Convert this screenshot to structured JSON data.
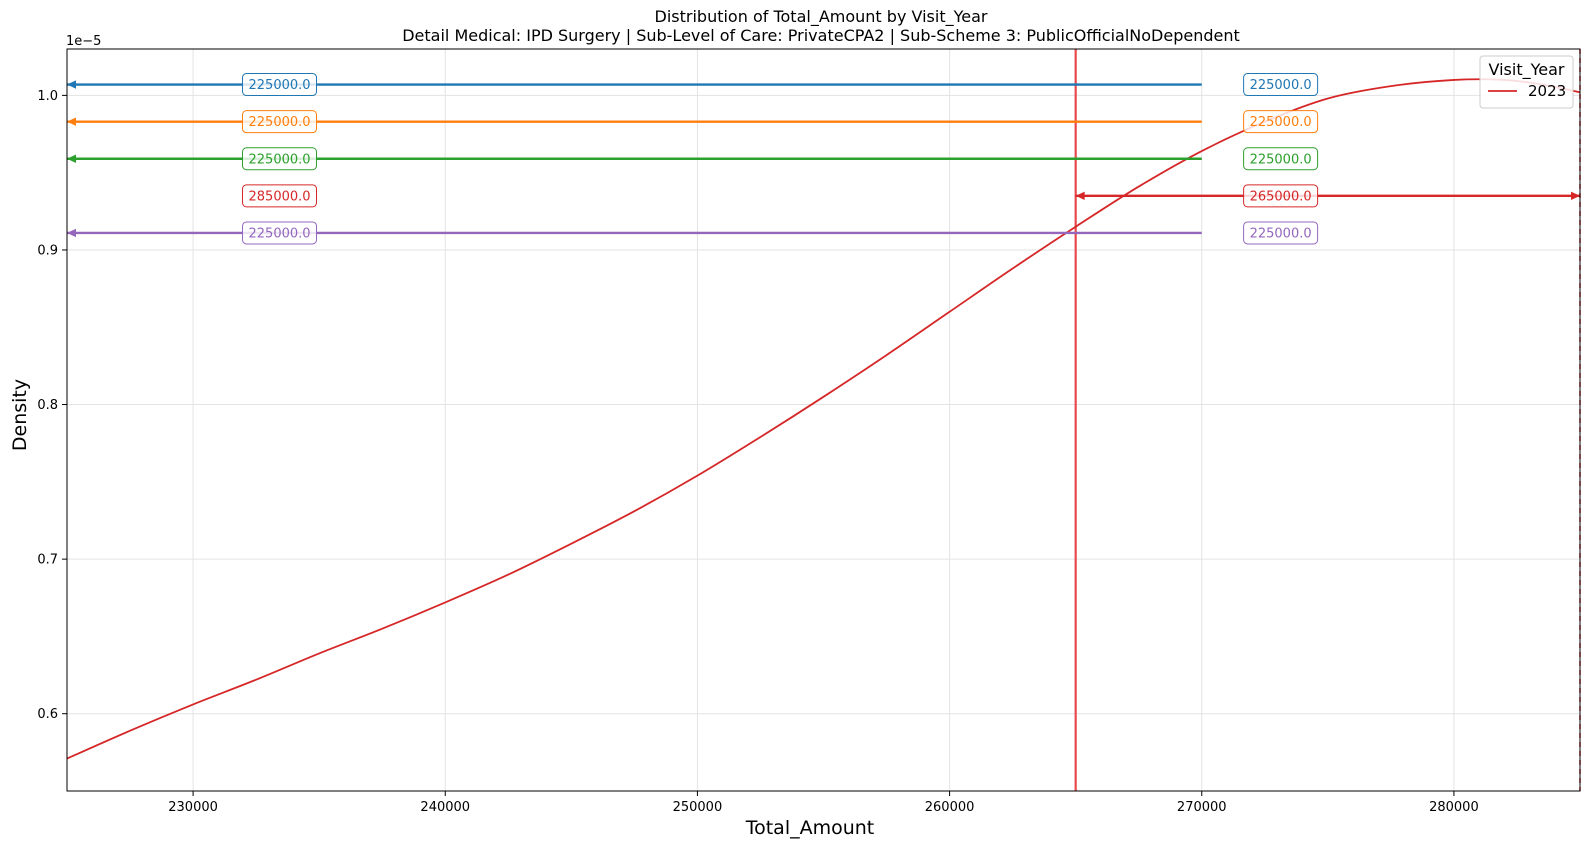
{
  "chart_data": {
    "type": "line",
    "title": "Distribution of Total_Amount by Visit_Year",
    "subtitle": "Detail Medical: IPD Surgery | Sub-Level of Care: PrivateCPA2 | Sub-Scheme 3: PublicOfficialNoDependent",
    "xlabel": "Total_Amount",
    "ylabel": "Density",
    "y_offset_label": "1e−5",
    "xlim": [
      225000,
      285000
    ],
    "ylim": [
      0.55,
      1.03
    ],
    "y_scale_note": "values in units of 1e-5",
    "x_ticks": [
      230000,
      240000,
      250000,
      260000,
      270000,
      280000
    ],
    "x_tick_labels": [
      "230000",
      "240000",
      "250000",
      "260000",
      "270000",
      "280000"
    ],
    "y_ticks": [
      0.6,
      0.7,
      0.8,
      0.9,
      1.0
    ],
    "y_tick_labels": [
      "0.6",
      "0.7",
      "0.8",
      "0.9",
      "1.0"
    ],
    "grid": true,
    "legend": {
      "title": "Visit_Year",
      "placement": "top-right",
      "entries": [
        {
          "name": "2023",
          "color": "#d62728"
        }
      ]
    },
    "series": [
      {
        "name": "2023",
        "color": "#d62728",
        "x": [
          225000,
          227500,
          230000,
          232500,
          235000,
          237500,
          240000,
          242500,
          245000,
          247500,
          250000,
          252500,
          255000,
          257500,
          260000,
          262500,
          265000,
          267500,
          270000,
          272500,
          275000,
          277500,
          280000,
          282000,
          283500,
          285000
        ],
        "y": [
          0.571,
          0.589,
          0.606,
          0.622,
          0.639,
          0.655,
          0.672,
          0.69,
          0.71,
          0.731,
          0.754,
          0.779,
          0.805,
          0.832,
          0.86,
          0.888,
          0.915,
          0.941,
          0.964,
          0.983,
          0.998,
          1.006,
          1.01,
          1.01,
          1.007,
          1.002
        ]
      }
    ],
    "vertical_lines": [
      {
        "x": 265000,
        "color": "#e8484b",
        "style": "solid"
      },
      {
        "x": 285000,
        "color": "#d62728",
        "style": "dashed"
      }
    ],
    "arrow_annotations": [
      {
        "y": 1.007,
        "x_start": 270000,
        "x_end": 225000,
        "color": "#1f77b4",
        "left_label": "225000.0",
        "right_label": "225000.0"
      },
      {
        "y": 0.983,
        "x_start": 270000,
        "x_end": 225000,
        "color": "#ff7f0e",
        "left_label": "225000.0",
        "right_label": "225000.0"
      },
      {
        "y": 0.959,
        "x_start": 270000,
        "x_end": 225000,
        "color": "#2ca02c",
        "left_label": "225000.0",
        "right_label": "225000.0"
      },
      {
        "y": 0.935,
        "x_start": 265000,
        "x_end": 285000,
        "color": "#d62728",
        "left_label": "285000.0",
        "right_label": "265000.0",
        "both_heads": true
      },
      {
        "y": 0.911,
        "x_start": 270000,
        "x_end": 225000,
        "color": "#9467bd",
        "left_label": "225000.0",
        "right_label": "225000.0"
      }
    ],
    "label_positions_x": {
      "left": 232000,
      "right": 271700
    }
  }
}
